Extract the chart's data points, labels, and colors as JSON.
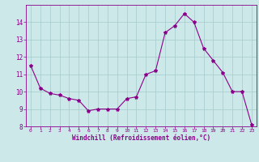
{
  "x": [
    0,
    1,
    2,
    3,
    4,
    5,
    6,
    7,
    8,
    9,
    10,
    11,
    12,
    13,
    14,
    15,
    16,
    17,
    18,
    19,
    20,
    21,
    22,
    23
  ],
  "y": [
    11.5,
    10.2,
    9.9,
    9.8,
    9.6,
    9.5,
    8.9,
    9.0,
    9.0,
    9.0,
    9.6,
    9.7,
    11.0,
    11.2,
    13.4,
    13.8,
    14.5,
    14.0,
    12.5,
    11.8,
    11.1,
    10.0,
    10.0,
    8.1
  ],
  "line_color": "#8B008B",
  "marker": "*",
  "marker_size": 3,
  "bg_color": "#cce8e8",
  "grid_color": "#aacece",
  "xlabel": "Windchill (Refroidissement éolien,°C)",
  "tick_color": "#8B008B",
  "ylim": [
    8,
    15
  ],
  "xlim": [
    -0.5,
    23.5
  ],
  "yticks": [
    8,
    9,
    10,
    11,
    12,
    13,
    14
  ],
  "xticks": [
    0,
    1,
    2,
    3,
    4,
    5,
    6,
    7,
    8,
    9,
    10,
    11,
    12,
    13,
    14,
    15,
    16,
    17,
    18,
    19,
    20,
    21,
    22,
    23
  ]
}
